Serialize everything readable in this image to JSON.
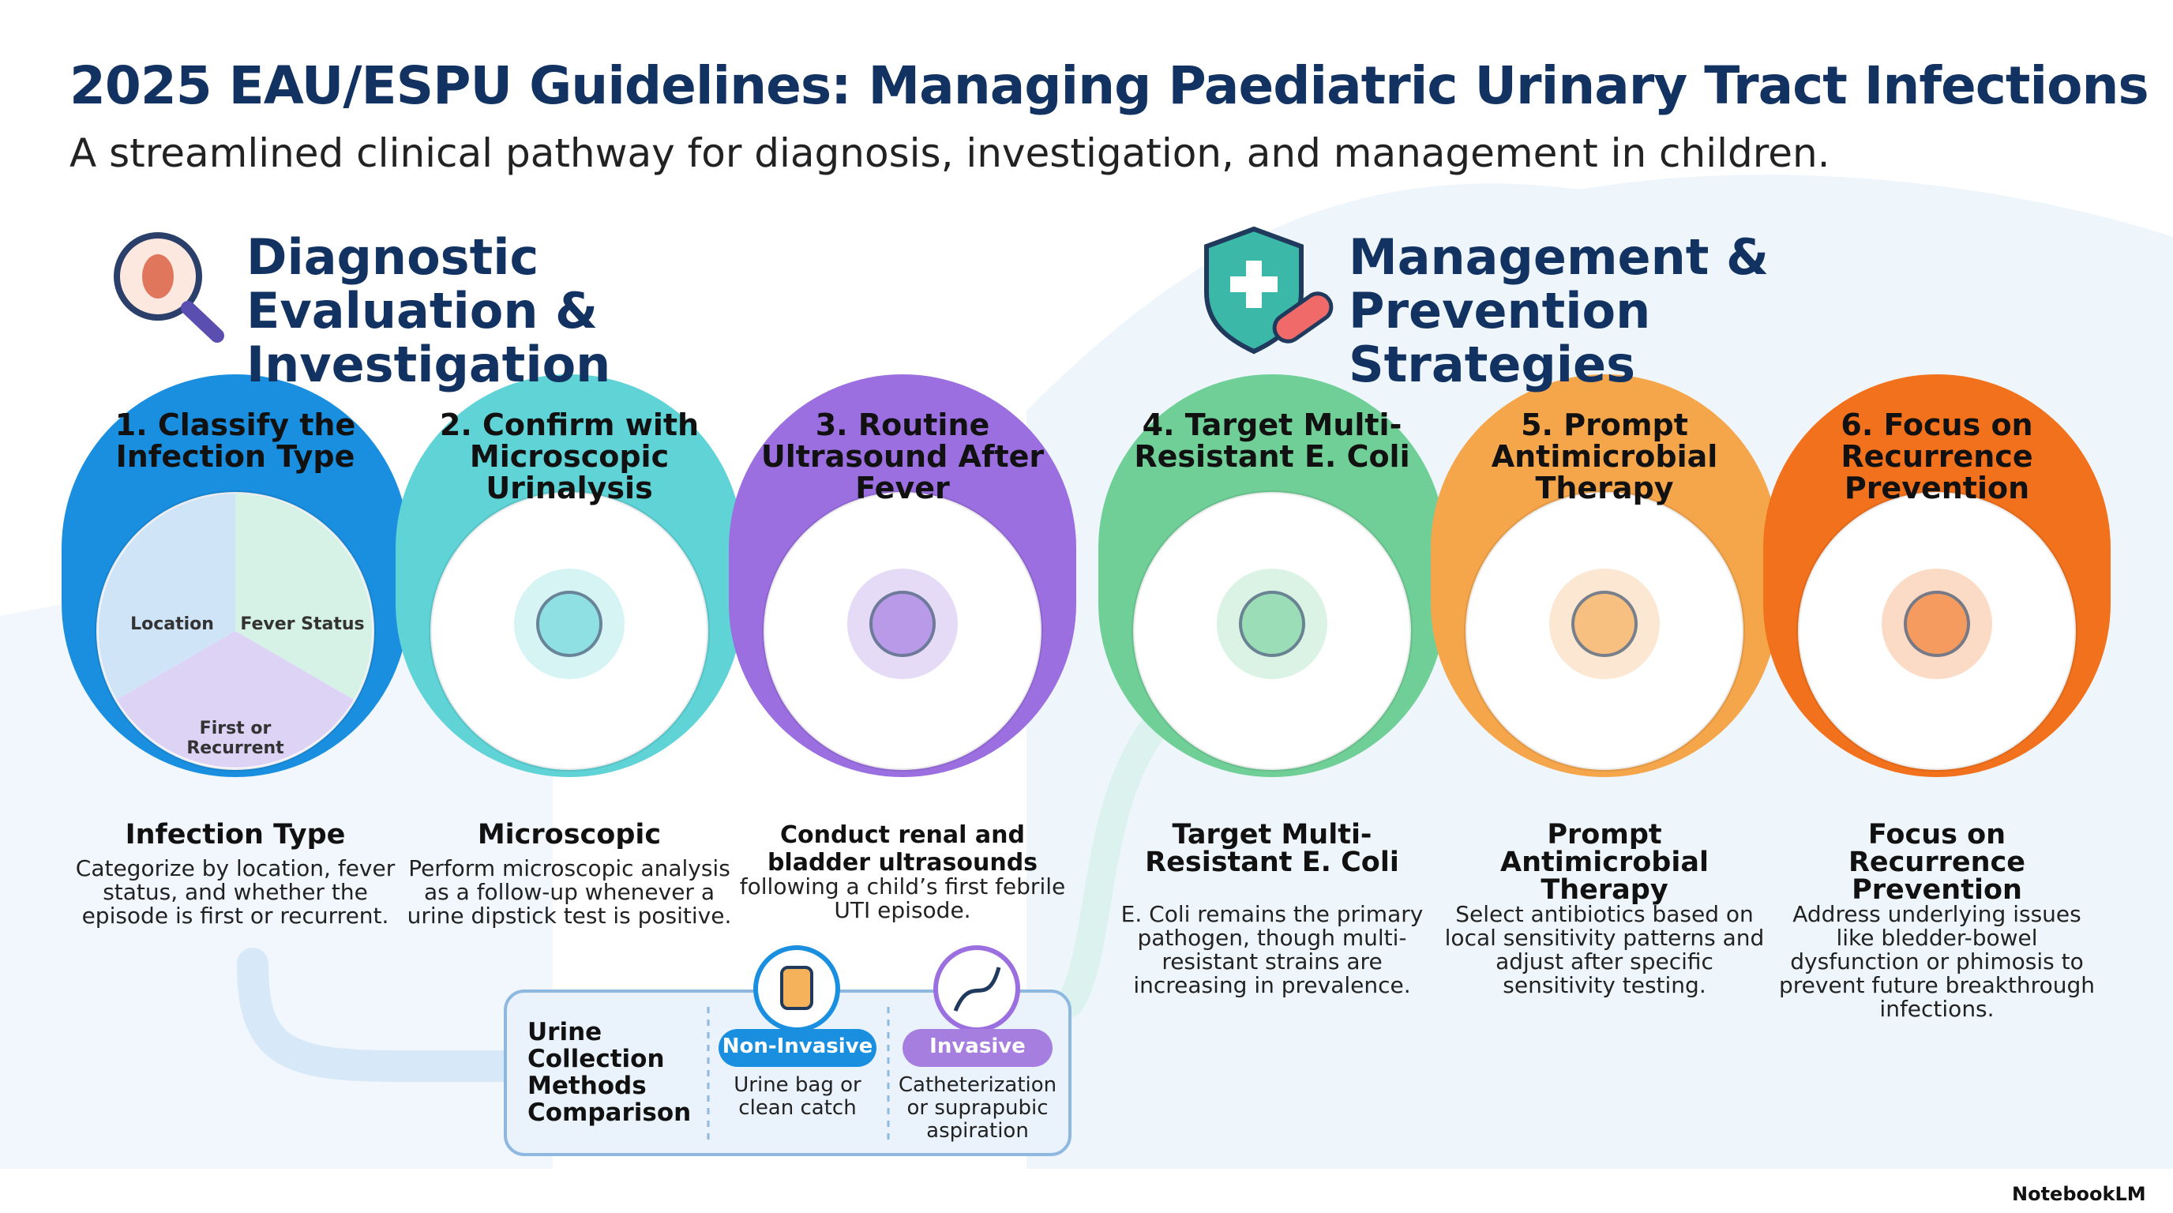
{
  "header": {
    "title": "2025 EAU/ESPU Guidelines: Managing Paediatric Urinary Tract Infections",
    "subtitle": "A streamlined clinical pathway for diagnosis, investigation, and management in children."
  },
  "sections": [
    {
      "title": "Diagnostic Evaluation & Investigation"
    },
    {
      "title": "Management & Prevention Strategies"
    }
  ],
  "steps": [
    {
      "circle_title": "1. Classify the Infection Type",
      "icon_labels": [
        "Location",
        "Fever Status",
        "First or Recurrent"
      ],
      "heading": "Infection Type",
      "body": "Categorize by location, fever status, and whether the episode is first or recurrent."
    },
    {
      "circle_title": "2. Confirm with Microscopic Urinalysis",
      "heading": "Microscopic",
      "body": "Perform microscopic analysis as a follow-up whenever a urine dipstick test is positive."
    },
    {
      "circle_title": "3. Routine Ultrasound After Fever",
      "heading": "Conduct renal and bladder ultrasounds",
      "body": "following a child’s first febrile UTI episode."
    },
    {
      "circle_title": "4. Target Multi-Resistant E. Coli",
      "heading": "Target Multi-Resistant E. Coli",
      "body": "E. Coli remains the primary pathogen, though multi-resistant strains are increasing in prevalence."
    },
    {
      "circle_title": "5. Prompt Antimicrobial Therapy",
      "heading": "Prompt Antimicrobial Therapy",
      "body": "Select antibiotics based on local sensitivity patterns and adjust after specific sensitivity testing."
    },
    {
      "circle_title": "6. Focus on Recurrence Prevention",
      "heading": "Focus on Recurrence Prevention",
      "body": "Address underlying issues like bledder-bowel dysfunction or phimosis to prevent future breakthrough infections."
    }
  ],
  "urine_collection": {
    "title": "Urine Collection Methods Comparison",
    "methods": [
      {
        "label": "Non-Invasive",
        "text": "Urine bag or clean catch"
      },
      {
        "label": "Invasive",
        "text": "Catheterization or suprapubic aspiration"
      }
    ]
  },
  "footer": {
    "brand": "NotebookLM"
  }
}
